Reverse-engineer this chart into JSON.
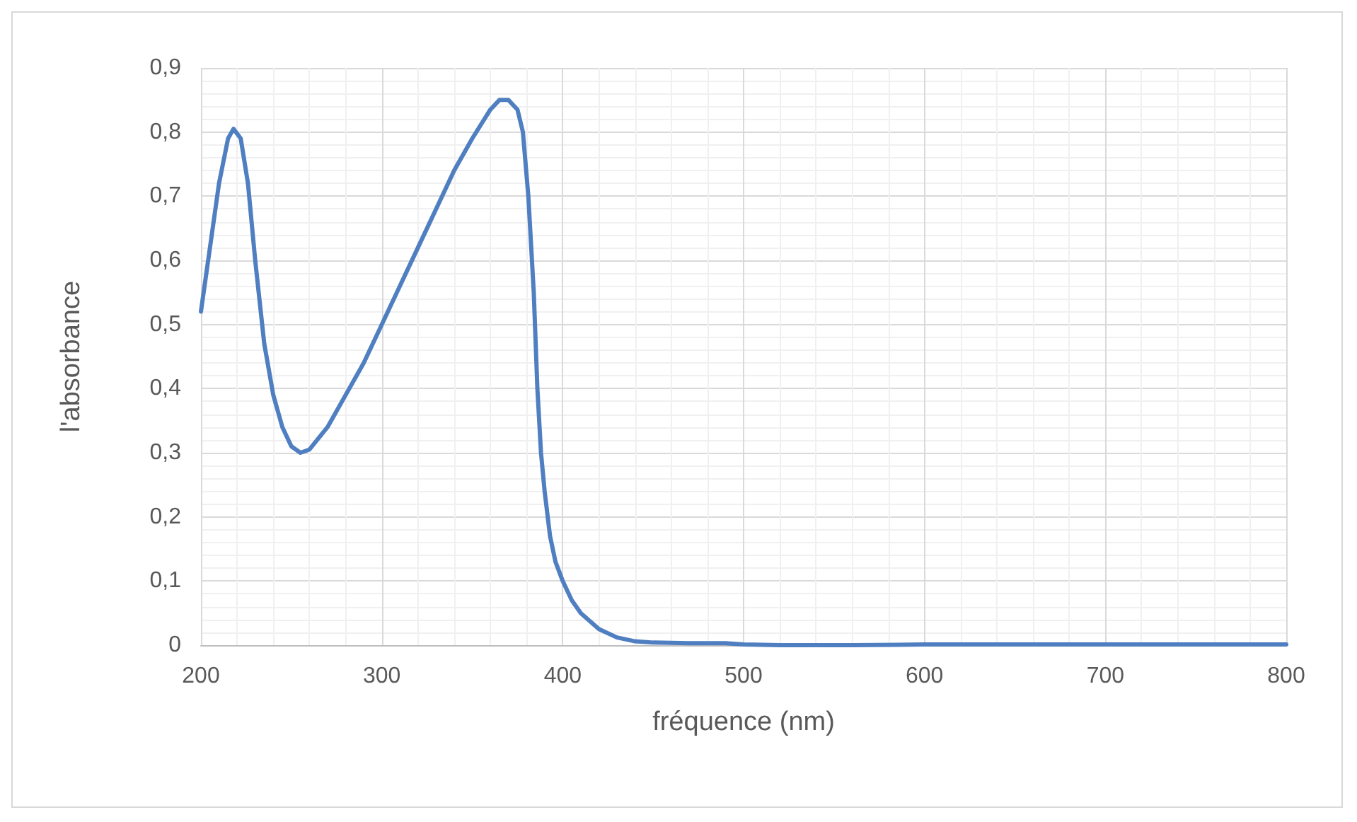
{
  "chart_data": {
    "type": "line",
    "xlabel": "fréquence (nm)",
    "ylabel": "l'absorbance",
    "xlim": [
      200,
      800
    ],
    "xticks": [
      200,
      300,
      400,
      500,
      600,
      700,
      800
    ],
    "ylim": [
      0,
      0.9
    ],
    "yticks": [
      {
        "value": 0,
        "label": "0"
      },
      {
        "value": 0.1,
        "label": "0,1"
      },
      {
        "value": 0.2,
        "label": "0,2"
      },
      {
        "value": 0.3,
        "label": "0,3"
      },
      {
        "value": 0.4,
        "label": "0,4"
      },
      {
        "value": 0.5,
        "label": "0,5"
      },
      {
        "value": 0.6,
        "label": "0,6"
      },
      {
        "value": 0.7,
        "label": "0,7"
      },
      {
        "value": 0.8,
        "label": "0,8"
      },
      {
        "value": 0.9,
        "label": "0,9"
      }
    ],
    "grid": true,
    "marker": "none",
    "line_style": "solid",
    "series": [
      {
        "color": "#4f7fc1",
        "x": [
          200,
          205,
          210,
          215,
          218,
          222,
          226,
          230,
          235,
          240,
          245,
          250,
          255,
          260,
          270,
          280,
          290,
          300,
          310,
          320,
          330,
          340,
          350,
          360,
          365,
          370,
          375,
          378,
          381,
          384,
          386,
          388,
          390,
          393,
          396,
          400,
          405,
          410,
          420,
          430,
          440,
          450,
          470,
          490,
          500,
          520,
          560,
          600,
          700,
          800
        ],
        "values": [
          0.52,
          0.62,
          0.72,
          0.79,
          0.805,
          0.79,
          0.72,
          0.6,
          0.47,
          0.39,
          0.34,
          0.31,
          0.3,
          0.305,
          0.34,
          0.39,
          0.44,
          0.5,
          0.56,
          0.62,
          0.68,
          0.74,
          0.79,
          0.835,
          0.85,
          0.85,
          0.835,
          0.8,
          0.7,
          0.55,
          0.4,
          0.3,
          0.24,
          0.17,
          0.13,
          0.1,
          0.07,
          0.05,
          0.025,
          0.012,
          0.006,
          0.004,
          0.003,
          0.003,
          0.001,
          0,
          0,
          0.001,
          0.001,
          0.001
        ]
      }
    ]
  }
}
